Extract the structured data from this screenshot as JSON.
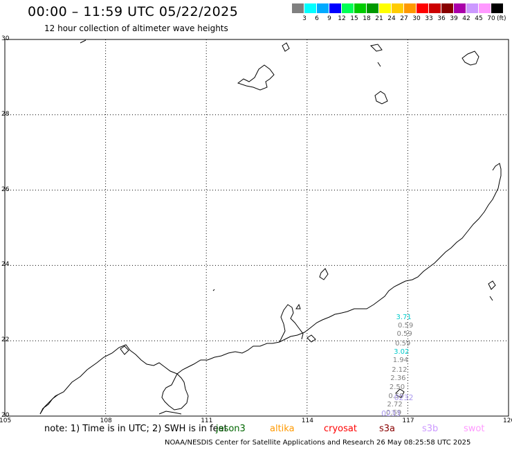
{
  "header": {
    "title": "00:00 – 11:59 UTC 05/22/2025",
    "subtitle": "12 hour collection of altimeter wave heights"
  },
  "colorbar": {
    "unit": "(ft)",
    "colors": [
      "#808080",
      "#00ffff",
      "#00aaff",
      "#0000ff",
      "#00ff55",
      "#00cc00",
      "#009900",
      "#ffff00",
      "#ffcc00",
      "#ff9900",
      "#ff0000",
      "#cc0000",
      "#880000",
      "#aa00aa",
      "#cc99ff",
      "#ff99ff",
      "#000000"
    ],
    "labels": [
      "3",
      "6",
      "9",
      "12",
      "15",
      "18",
      "21",
      "24",
      "27",
      "30",
      "33",
      "36",
      "39",
      "42",
      "45",
      "70"
    ]
  },
  "axes": {
    "lat_labels": [
      "30",
      "28",
      "26",
      "24",
      "22",
      "20"
    ],
    "lon_labels": [
      "105",
      "108",
      "111",
      "114",
      "117",
      "120"
    ],
    "lat_range": [
      20,
      30
    ],
    "lon_range": [
      105,
      120
    ]
  },
  "observations": [
    {
      "value": "3.71",
      "color": "#00cccc",
      "lat": 22.6,
      "lon": 116.9
    },
    {
      "value": "0.59",
      "color": "#808080",
      "lat": 22.38,
      "lon": 116.95
    },
    {
      "value": "0.59",
      "color": "#808080",
      "lat": 22.15,
      "lon": 116.92
    },
    {
      "value": "0.59",
      "color": "#808080",
      "lat": 21.9,
      "lon": 116.87
    },
    {
      "value": "3.02",
      "color": "#00cccc",
      "lat": 21.68,
      "lon": 116.83
    },
    {
      "value": "1.94",
      "color": "#808080",
      "lat": 21.45,
      "lon": 116.8
    },
    {
      "value": "2.12",
      "color": "#808080",
      "lat": 21.2,
      "lon": 116.77
    },
    {
      "value": "2.36",
      "color": "#808080",
      "lat": 20.97,
      "lon": 116.73
    },
    {
      "value": "2.50",
      "color": "#808080",
      "lat": 20.73,
      "lon": 116.7
    },
    {
      "value": "0.59",
      "color": "#808080",
      "lat": 20.5,
      "lon": 116.67
    },
    {
      "value": "2.72",
      "color": "#808080",
      "lat": 20.27,
      "lon": 116.63
    },
    {
      "value": "0.59",
      "color": "#808080",
      "lat": 20.05,
      "lon": 116.6
    }
  ],
  "pass_times": [
    {
      "value": "0232",
      "color": "#aa99ee",
      "lat": 20.48,
      "lon": 116.88
    },
    {
      "value": "0233",
      "color": "#aa99ee",
      "lat": 20.05,
      "lon": 116.5
    }
  ],
  "footer": {
    "note": "note: 1) Time is in UTC; 2) SWH is in feet",
    "missions": [
      {
        "name": "jason3",
        "color": "#006600"
      },
      {
        "name": "altika",
        "color": "#ff9900"
      },
      {
        "name": "cryosat",
        "color": "#ff0000"
      },
      {
        "name": "s3a",
        "color": "#880000"
      },
      {
        "name": "s3b",
        "color": "#cc99ff"
      },
      {
        "name": "swot",
        "color": "#ff99ff"
      }
    ],
    "credit": "NOAA/NESDIS Center for Satellite Applications and Research    26 May 08:25:58 UTC 2025"
  }
}
